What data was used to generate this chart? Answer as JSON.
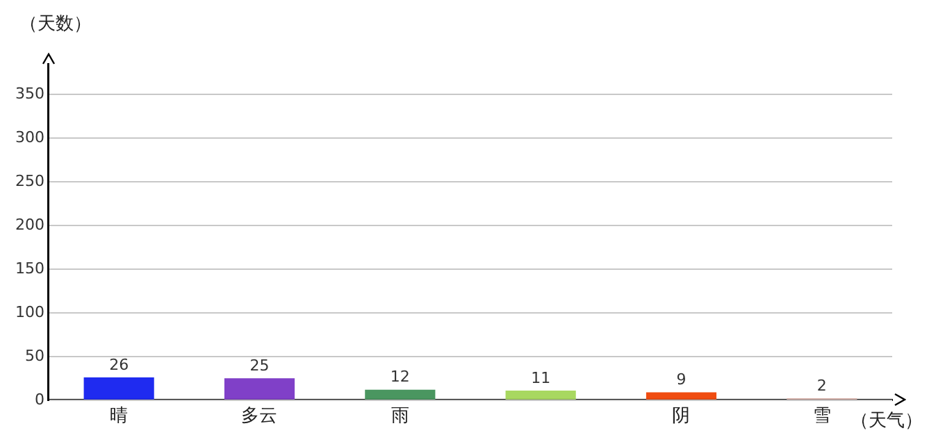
{
  "chart_data": {
    "type": "bar",
    "xlabel": "（天气）",
    "ylabel": "（天数）",
    "categories": [
      "晴",
      "多云",
      "雨",
      null,
      "阴",
      "雪"
    ],
    "values": [
      26,
      25,
      12,
      11,
      9,
      2
    ],
    "colors": [
      "#1f2bf0",
      "#8040c8",
      "#4a9660",
      "#a8d860",
      "#f04c10",
      "#d8aaa0"
    ],
    "ylim": [
      0,
      385
    ],
    "yticks": [
      0,
      50,
      100,
      150,
      200,
      250,
      300,
      350
    ],
    "grid": "y",
    "data_labels": true,
    "legend": false
  }
}
